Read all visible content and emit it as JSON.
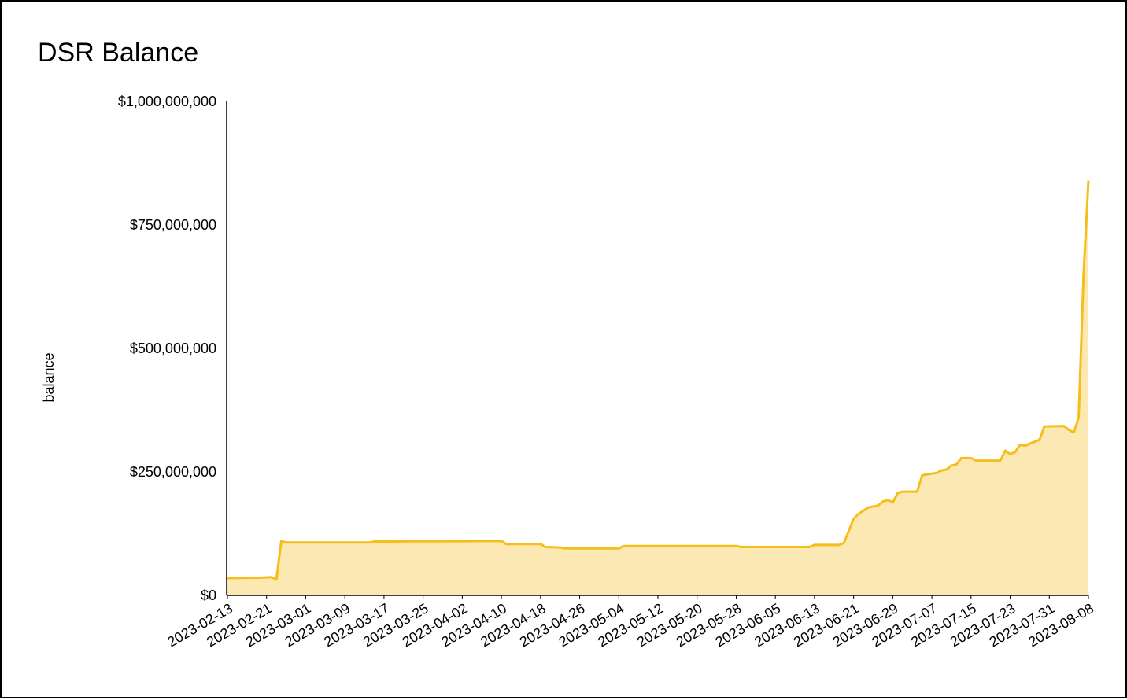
{
  "chart_data": {
    "type": "area",
    "title": "DSR Balance",
    "ylabel": "balance",
    "x": [
      "2023-02-13",
      "2023-02-20",
      "2023-02-22",
      "2023-02-23",
      "2023-02-24",
      "2023-02-25",
      "2023-03-14",
      "2023-03-15",
      "2023-04-10",
      "2023-04-11",
      "2023-04-18",
      "2023-04-19",
      "2023-04-22",
      "2023-04-23",
      "2023-05-04",
      "2023-05-05",
      "2023-05-28",
      "2023-05-29",
      "2023-06-12",
      "2023-06-13",
      "2023-06-18",
      "2023-06-19",
      "2023-06-20",
      "2023-06-21",
      "2023-06-22",
      "2023-06-24",
      "2023-06-26",
      "2023-06-27",
      "2023-06-28",
      "2023-06-29",
      "2023-06-30",
      "2023-07-01",
      "2023-07-04",
      "2023-07-05",
      "2023-07-06",
      "2023-07-08",
      "2023-07-09",
      "2023-07-10",
      "2023-07-11",
      "2023-07-12",
      "2023-07-13",
      "2023-07-15",
      "2023-07-16",
      "2023-07-21",
      "2023-07-22",
      "2023-07-23",
      "2023-07-24",
      "2023-07-25",
      "2023-07-26",
      "2023-07-29",
      "2023-07-30",
      "2023-08-03",
      "2023-08-04",
      "2023-08-05",
      "2023-08-06",
      "2023-08-07",
      "2023-08-08"
    ],
    "series": [
      {
        "name": "balance",
        "color": "#f6be1a",
        "fill": "#fce8b2",
        "values": [
          35000000,
          36000000,
          37000000,
          32000000,
          110000000,
          107000000,
          107000000,
          109000000,
          110000000,
          104000000,
          104000000,
          98000000,
          97000000,
          95000000,
          95000000,
          100000000,
          100000000,
          98000000,
          98000000,
          102000000,
          102000000,
          106000000,
          130000000,
          155000000,
          165000000,
          178000000,
          182000000,
          190000000,
          193000000,
          188000000,
          207000000,
          210000000,
          210000000,
          243000000,
          245000000,
          248000000,
          253000000,
          255000000,
          263000000,
          265000000,
          278000000,
          278000000,
          273000000,
          273000000,
          293000000,
          286000000,
          290000000,
          305000000,
          303000000,
          315000000,
          342000000,
          343000000,
          335000000,
          330000000,
          360000000,
          650000000,
          840000000
        ]
      }
    ],
    "xlim": [
      "2023-02-13",
      "2023-08-08"
    ],
    "xticks": [
      "2023-02-13",
      "2023-02-21",
      "2023-03-01",
      "2023-03-09",
      "2023-03-17",
      "2023-03-25",
      "2023-04-02",
      "2023-04-10",
      "2023-04-18",
      "2023-04-26",
      "2023-05-04",
      "2023-05-12",
      "2023-05-20",
      "2023-05-28",
      "2023-06-05",
      "2023-06-13",
      "2023-06-21",
      "2023-06-29",
      "2023-07-07",
      "2023-07-15",
      "2023-07-23",
      "2023-07-31",
      "2023-08-08"
    ],
    "ylim": [
      0,
      1000000000
    ],
    "yticks": [
      {
        "value": 0,
        "label": "$0"
      },
      {
        "value": 250000000,
        "label": "$250,000,000"
      },
      {
        "value": 500000000,
        "label": "$500,000,000"
      },
      {
        "value": 750000000,
        "label": "$750,000,000"
      },
      {
        "value": 1000000000,
        "label": "$1,000,000,000"
      }
    ],
    "grid": false
  }
}
